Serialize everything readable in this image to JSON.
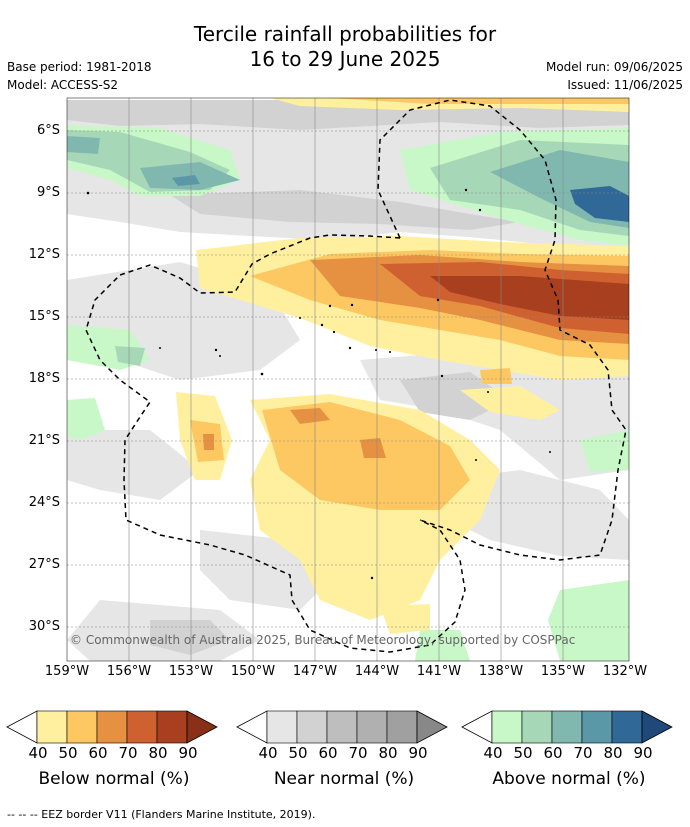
{
  "title_line1": "Tercile rainfall probabilities for",
  "title_line2": "16 to 29 June 2025",
  "base_period": "Base period: 1981-2018",
  "model": "Model: ACCESS-S2",
  "model_run": "Model run: 09/06/2025",
  "issued": "Issued: 11/06/2025",
  "lat_labels": [
    "6°S",
    "9°S",
    "12°S",
    "15°S",
    "18°S",
    "21°S",
    "24°S",
    "27°S",
    "30°S"
  ],
  "lon_labels": [
    "159°W",
    "156°W",
    "153°W",
    "150°W",
    "147°W",
    "144°W",
    "141°W",
    "138°W",
    "135°W",
    "132°W"
  ],
  "copyright": "© Commonwealth of Australia 2025, Bureau of Meteorology, supported by COSPPac",
  "legends": [
    {
      "caption": "Below normal (%)",
      "ticks": [
        "40",
        "50",
        "60",
        "70",
        "80",
        "90"
      ],
      "colors": [
        "#fff0a0",
        "#fdc862",
        "#e69142",
        "#cf6030",
        "#a84020",
        "#8a3018"
      ]
    },
    {
      "caption": "Near normal (%)",
      "ticks": [
        "40",
        "50",
        "60",
        "70",
        "80",
        "90"
      ],
      "colors": [
        "#e6e6e6",
        "#d2d2d2",
        "#bebebe",
        "#b0b0b0",
        "#a0a0a0",
        "#888888"
      ]
    },
    {
      "caption": "Above normal (%)",
      "ticks": [
        "40",
        "50",
        "60",
        "70",
        "80",
        "90"
      ],
      "colors": [
        "#c8f8c8",
        "#a6d8b8",
        "#80b8b0",
        "#5a98a8",
        "#306898",
        "#204878"
      ]
    }
  ],
  "footer": "--  --  -- EEZ border V11 (Flanders Marine Institute, 2019)."
}
